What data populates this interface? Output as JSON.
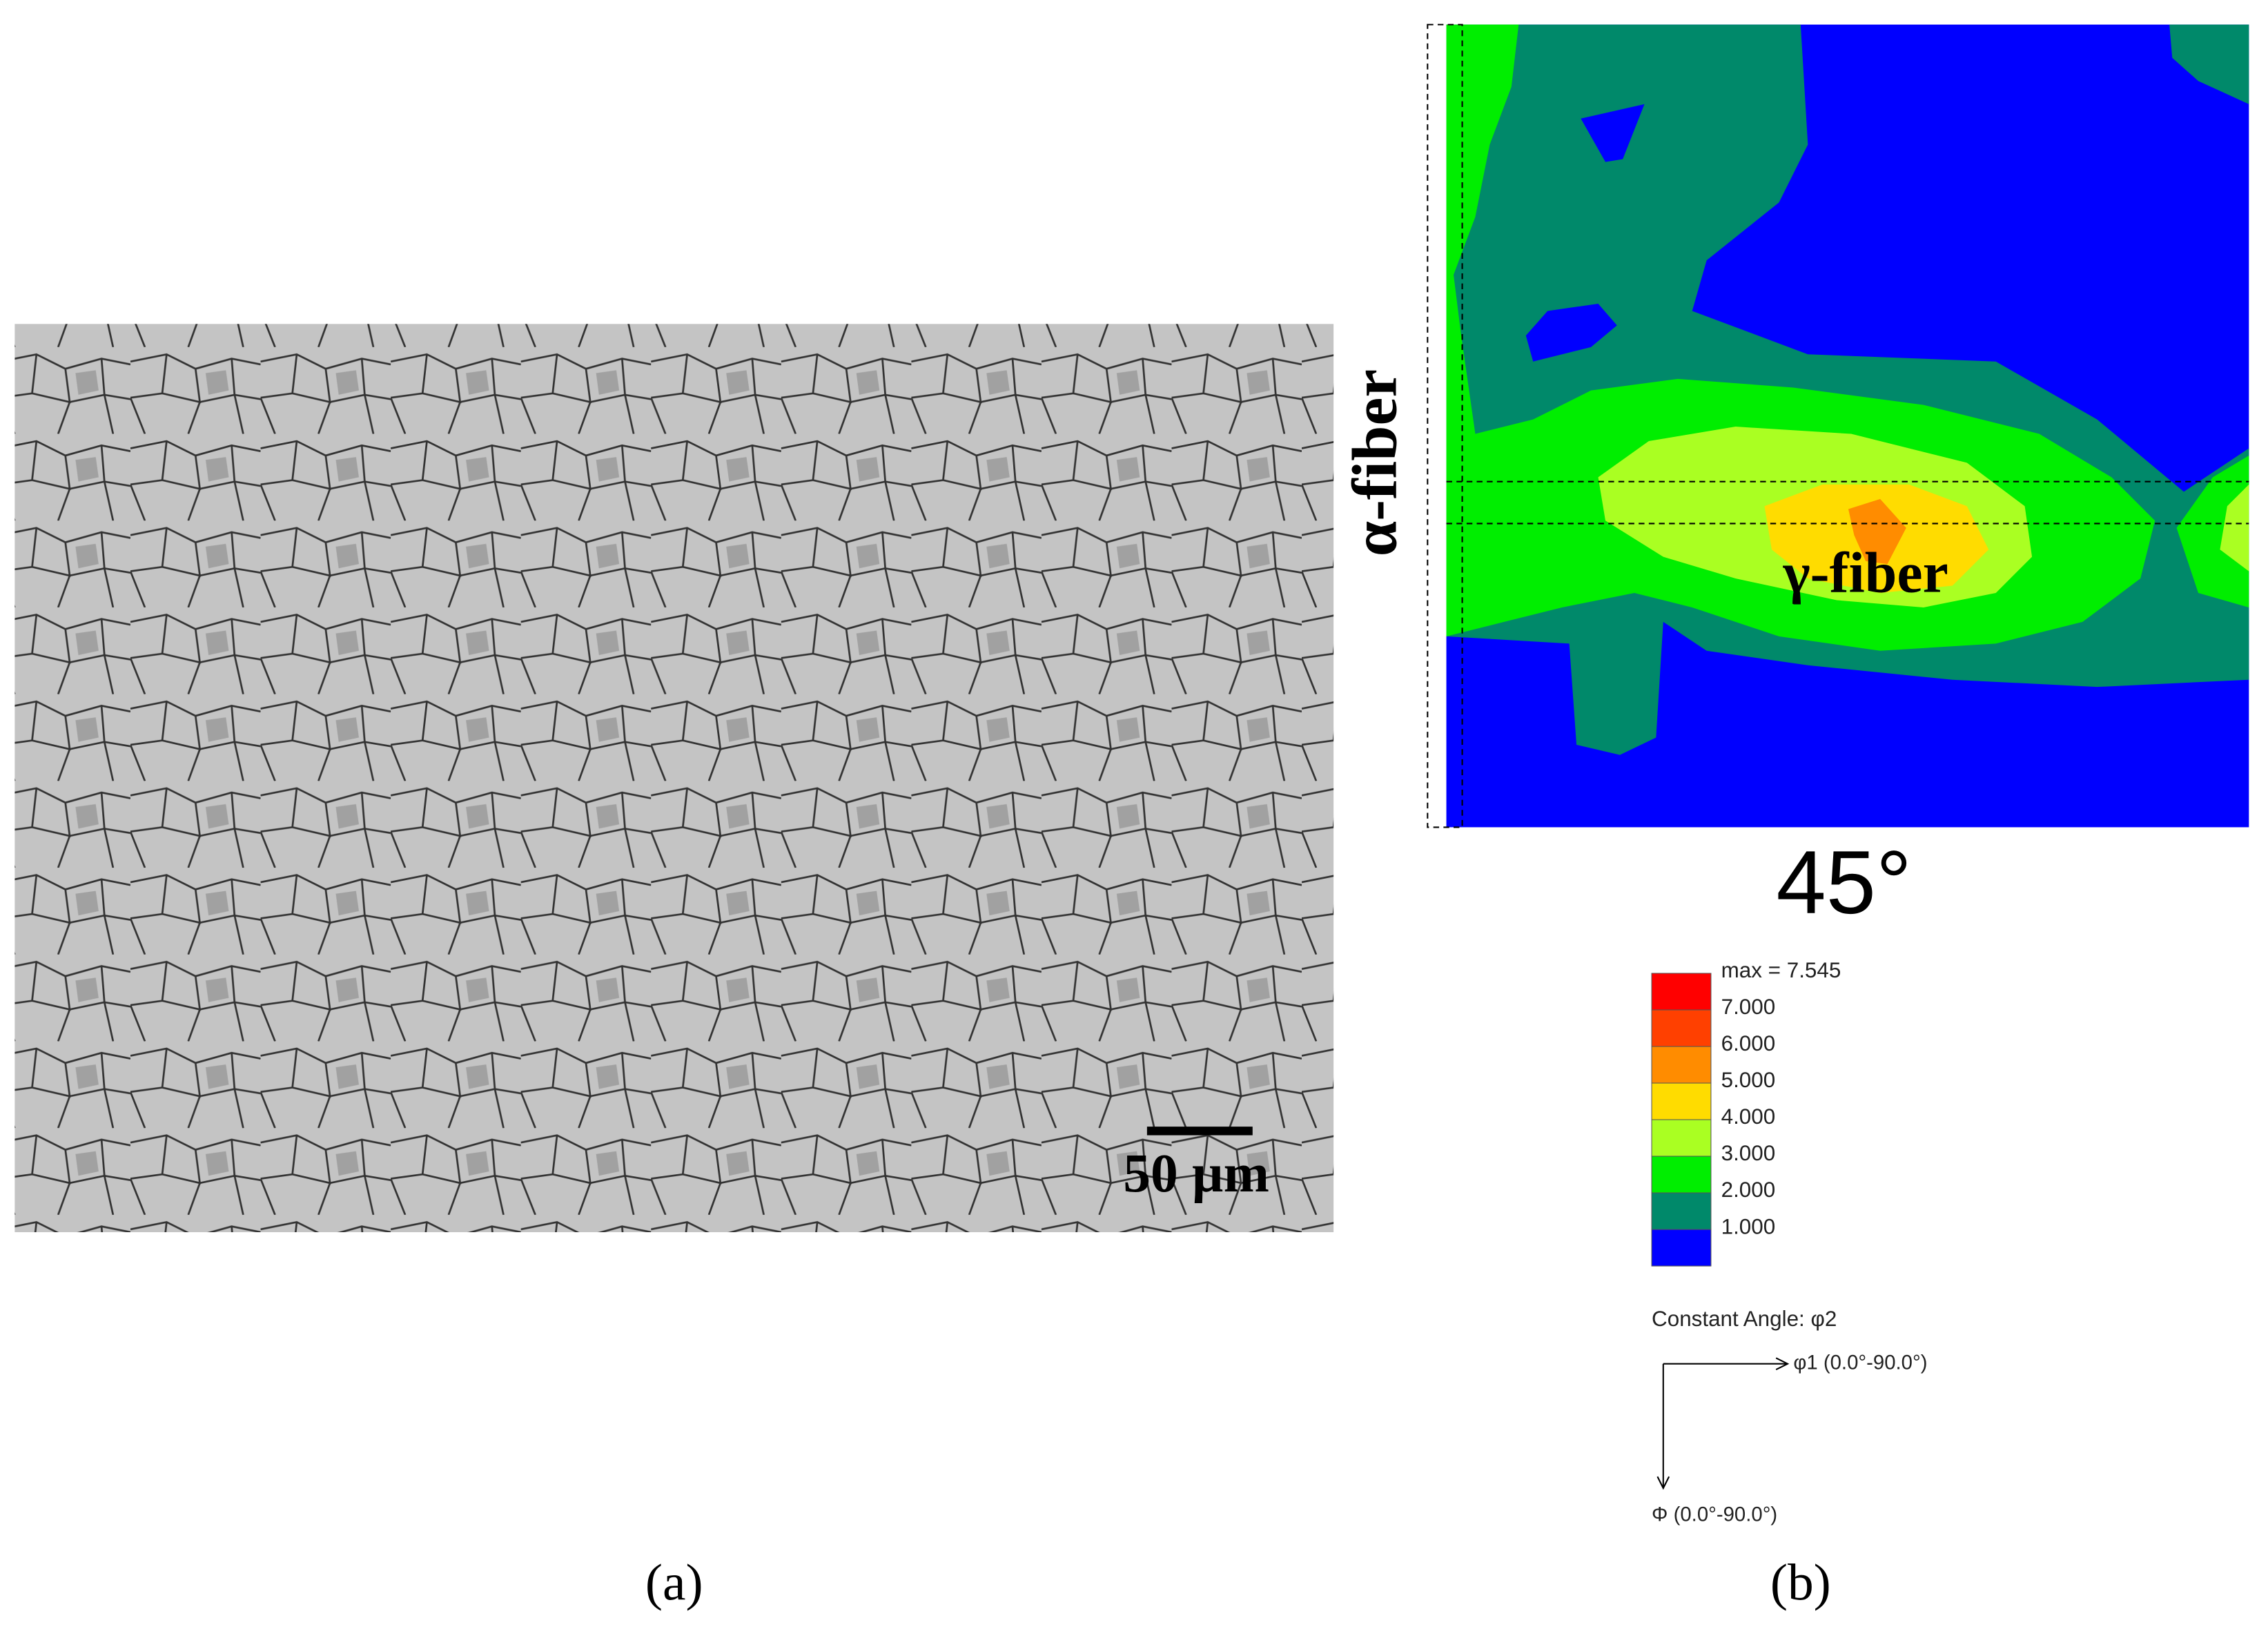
{
  "panel_a": {
    "scale_bar": "50 µm",
    "caption": "(a)"
  },
  "panel_b": {
    "alpha_label": "α-fiber",
    "gamma_label": "γ-fiber",
    "section_angle": "45°",
    "legend": [
      {
        "label": "max = 7.545",
        "color": "#ff0000"
      },
      {
        "label": "7.000",
        "color": "#ff4000"
      },
      {
        "label": "6.000",
        "color": "#ff8c00"
      },
      {
        "label": "5.000",
        "color": "#ffdc00"
      },
      {
        "label": "4.000",
        "color": "#aaff22"
      },
      {
        "label": "3.000",
        "color": "#00ee00"
      },
      {
        "label": "2.000",
        "color": "#00896a"
      },
      {
        "label": "1.000",
        "color": "#0000ff"
      }
    ],
    "constant_angle": "Constant Angle: φ2",
    "axis_x": "φ1 (0.0°-90.0°)",
    "axis_y": "Φ (0.0°-90.0°)",
    "caption": "(b)"
  }
}
